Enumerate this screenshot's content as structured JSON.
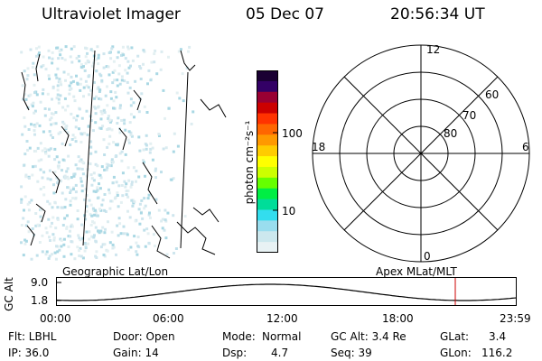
{
  "header": {
    "title": "Ultraviolet Imager",
    "date": "05 Dec 07",
    "time": "20:56:34 UT"
  },
  "panels": {
    "left_caption": "Geographic Lat/Lon",
    "right_caption": "Apex MLat/MLT"
  },
  "colorbar": {
    "unit_label": "photon cm⁻²s⁻¹",
    "ticks": [
      "100",
      "10"
    ],
    "colors": [
      "#1a0033",
      "#330066",
      "#990033",
      "#cc0000",
      "#ff3300",
      "#ff6600",
      "#ff9900",
      "#ffcc00",
      "#ffff00",
      "#ccff00",
      "#66ff00",
      "#00ee44",
      "#00dd99",
      "#33ddee",
      "#99ddee",
      "#cce8ee",
      "#e8f2f4"
    ]
  },
  "polar_plot": {
    "mlt_labels": {
      "top": "12",
      "left": "18",
      "right": "6",
      "bottom": "0"
    },
    "lat_labels": [
      "60",
      "70",
      "80"
    ]
  },
  "alt_chart": {
    "y_axis_label": "GC Alt",
    "y_ticks": [
      "9.0",
      "1.8"
    ],
    "x_ticks": [
      "00:00",
      "06:00",
      "12:00",
      "18:00",
      "23:59"
    ],
    "marker_color": "#cc0000"
  },
  "status": {
    "filter": "Flt: LBHL",
    "door": "Door: Open",
    "mode_label": "Mode:",
    "mode_value": "Normal",
    "gc_alt": "GC Alt: 3.4 Re",
    "glat_label": "GLat:",
    "glat_value": "3.4",
    "ip": "IP: 36.0",
    "gain": "Gain: 14",
    "dsp_label": "Dsp:",
    "dsp_value": "4.7",
    "seq": "Seq: 39",
    "glon_label": "GLon:",
    "glon_value": "116.2"
  }
}
